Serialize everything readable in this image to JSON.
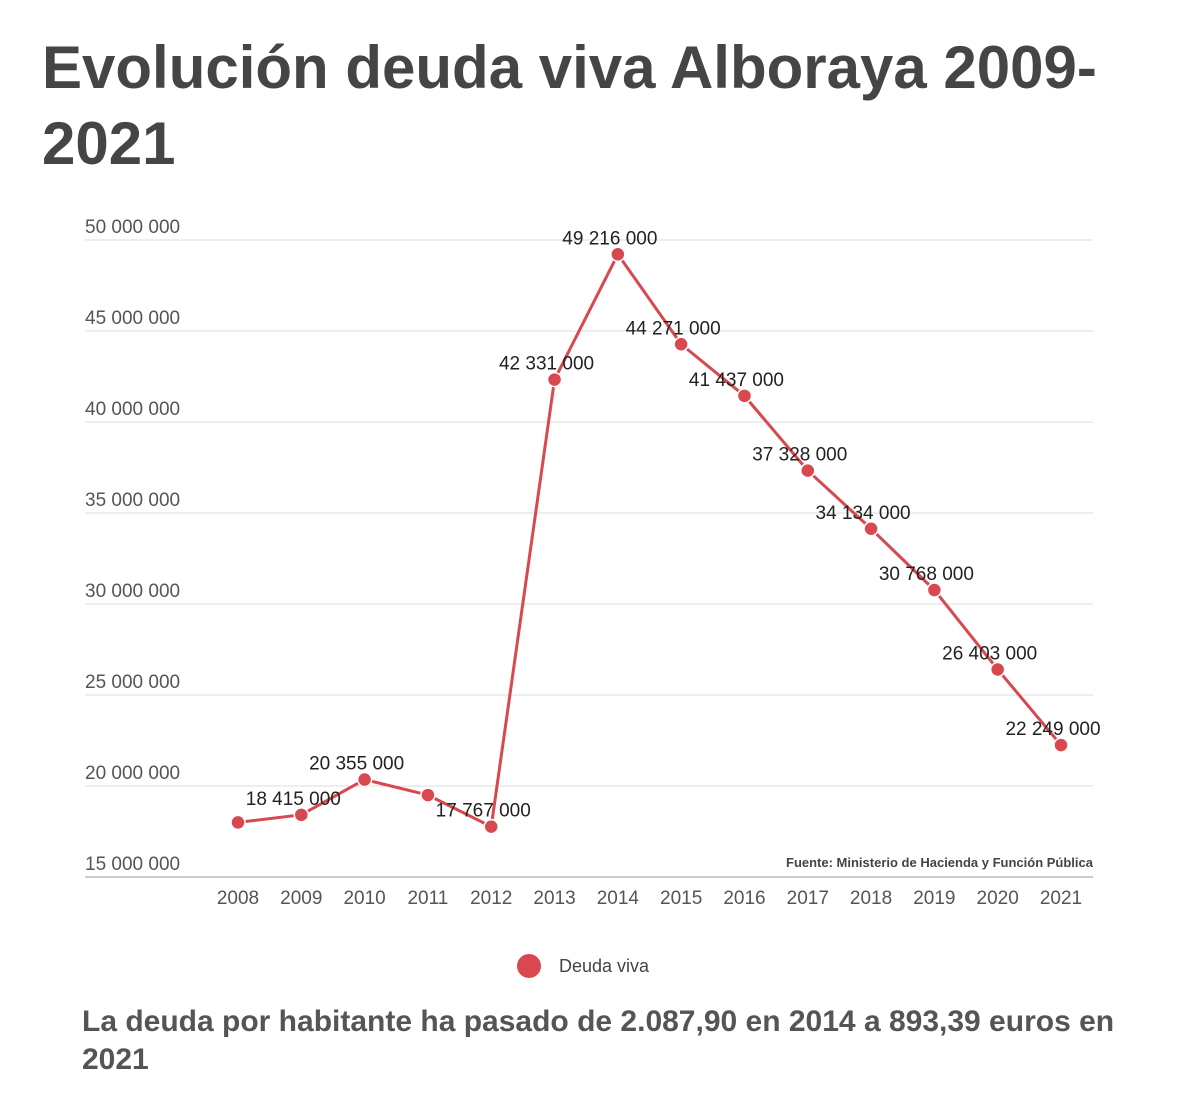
{
  "chart_data": {
    "type": "line",
    "title": "Evolución deuda viva Alboraya 2009-2021",
    "subtitle": "La deuda por habitante ha pasado de 2.087,90 en 2014 a 893,39 euros en 2021",
    "source": "Fuente: Ministerio de Hacienda y Función Pública",
    "categories": [
      "2008",
      "2009",
      "2010",
      "2011",
      "2012",
      "2013",
      "2014",
      "2015",
      "2016",
      "2017",
      "2018",
      "2019",
      "2020",
      "2021"
    ],
    "series": [
      {
        "name": "Deuda viva",
        "color": "#d9484f",
        "values": [
          18000000,
          18415000,
          20355000,
          19500000,
          17767000,
          42331000,
          49216000,
          44271000,
          41437000,
          37328000,
          34134000,
          30768000,
          26403000,
          22249000
        ],
        "labels": [
          "",
          "18 415 000",
          "20 355 000",
          "",
          "17 767 000",
          "42 331 000",
          "49 216 000",
          "44 271 000",
          "41 437 000",
          "37 328 000",
          "34 134 000",
          "30 768 000",
          "26 403 000",
          "22 249 000"
        ]
      }
    ],
    "y_ticks": [
      "15 000 000",
      "20 000 000",
      "25 000 000",
      "30 000 000",
      "35 000 000",
      "40 000 000",
      "45 000 000",
      "50 000 000"
    ],
    "y_tick_values": [
      15000000,
      20000000,
      25000000,
      30000000,
      35000000,
      40000000,
      45000000,
      50000000
    ],
    "ylim": [
      15000000,
      50000000
    ],
    "grid": true,
    "legend": "bottom"
  }
}
